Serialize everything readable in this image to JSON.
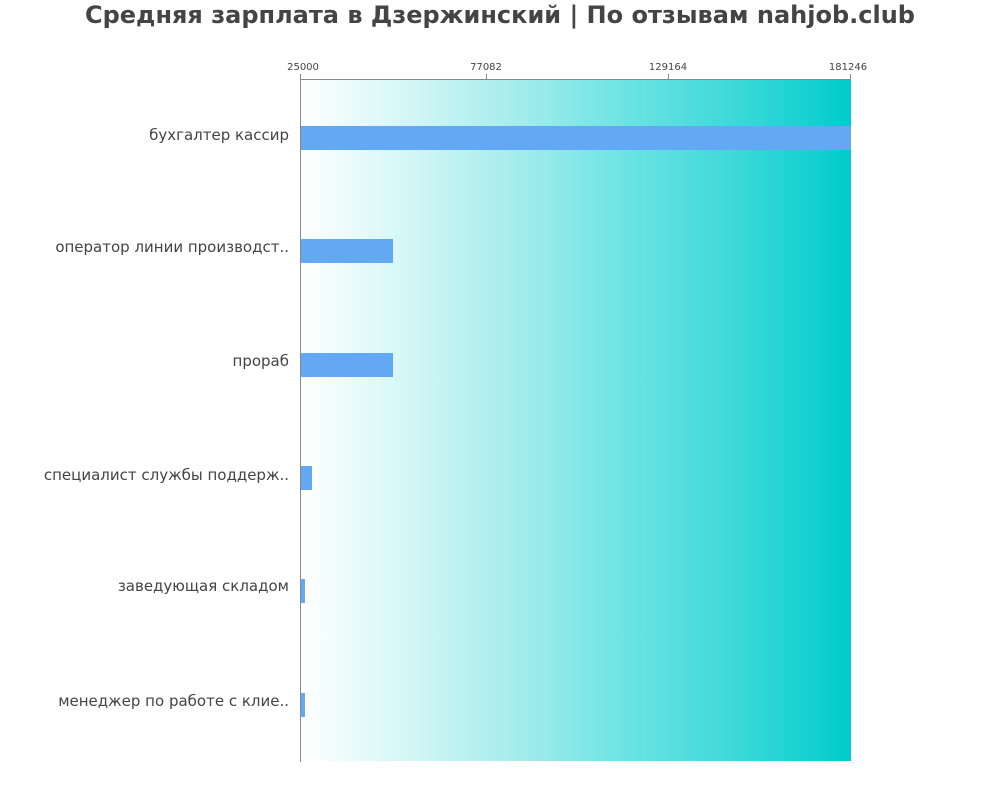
{
  "header": {
    "title": "Средняя зарплата в Дзержинский | По отзывам nahjob.club"
  },
  "axis": {
    "ticks": [
      "25000",
      "77082",
      "129164",
      "181246"
    ]
  },
  "colors": {
    "bar": "#62a8f2",
    "gradient_start": "#ffffff",
    "gradient_end": "#00cccc",
    "text": "#444444"
  },
  "chart_data": {
    "type": "bar",
    "orientation": "horizontal",
    "title": "Средняя зарплата в Дзержинский | По отзывам nahjob.club",
    "xlabel": "",
    "ylabel": "",
    "categories": [
      "бухгалтер кассир",
      "оператор линии производст..",
      "прораб",
      "специалист службы поддерж..",
      "заведующая складом",
      "менеджер по работе с клие.."
    ],
    "values": [
      181246,
      51100,
      51100,
      28100,
      26200,
      26100
    ],
    "xlim": [
      25000,
      181246
    ],
    "x_ticks": [
      25000,
      77082,
      129164,
      181246
    ],
    "axis_position": "top",
    "grid": false,
    "legend": null
  }
}
